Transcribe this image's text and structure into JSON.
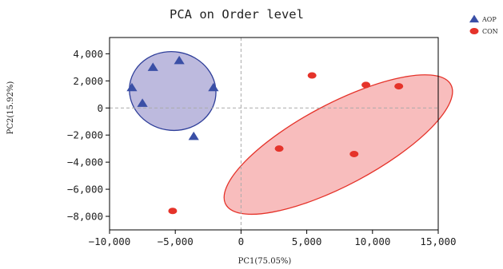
{
  "chart_data": {
    "type": "scatter",
    "title": "PCA on Order level",
    "xlabel": "PC1(75.05%)",
    "ylabel": "PC2(15.92%)",
    "xlim": [
      -10000,
      15000
    ],
    "ylim": [
      -9000,
      5200
    ],
    "xticks": [
      -10000,
      -5000,
      0,
      5000,
      10000,
      15000
    ],
    "xtick_labels": [
      "−10,000",
      "−5,000",
      "0",
      "5,000",
      "10,000",
      "15,000"
    ],
    "yticks": [
      -8000,
      -6000,
      -4000,
      -2000,
      0,
      2000,
      4000
    ],
    "ytick_labels": [
      "−8,000",
      "−6,000",
      "−4,000",
      "−2,000",
      "0",
      "2,000",
      "4,000"
    ],
    "grid": false,
    "reference_lines": {
      "x": 0,
      "y": 0
    },
    "legend_position": "top-right, outside plot",
    "series": [
      {
        "name": "AOP",
        "marker": "triangle",
        "color": "#3a4fa6",
        "ellipse_fill": "#b9b6dc",
        "ellipse_stroke": "#2f3f9a",
        "x": [
          -8300,
          -6700,
          -4700,
          -2100,
          -7500,
          -3600
        ],
        "y": [
          1500,
          3000,
          3500,
          1500,
          350,
          -2100
        ],
        "ellipse": {
          "cx": -5200,
          "cy": 1250,
          "rx": 3300,
          "ry": 2900,
          "angle": -10
        }
      },
      {
        "name": "CON",
        "marker": "circle",
        "color": "#e5332a",
        "ellipse_fill": "#f8b9b9",
        "ellipse_stroke": "#e5332a",
        "x": [
          5400,
          9500,
          12000,
          2900,
          8600,
          -5200
        ],
        "y": [
          2400,
          1700,
          1600,
          -3000,
          -3400,
          -7600
        ],
        "ellipse": {
          "cx": 7400,
          "cy": -2700,
          "rx": 9700,
          "ry": 3000,
          "angle": 28
        }
      }
    ]
  }
}
